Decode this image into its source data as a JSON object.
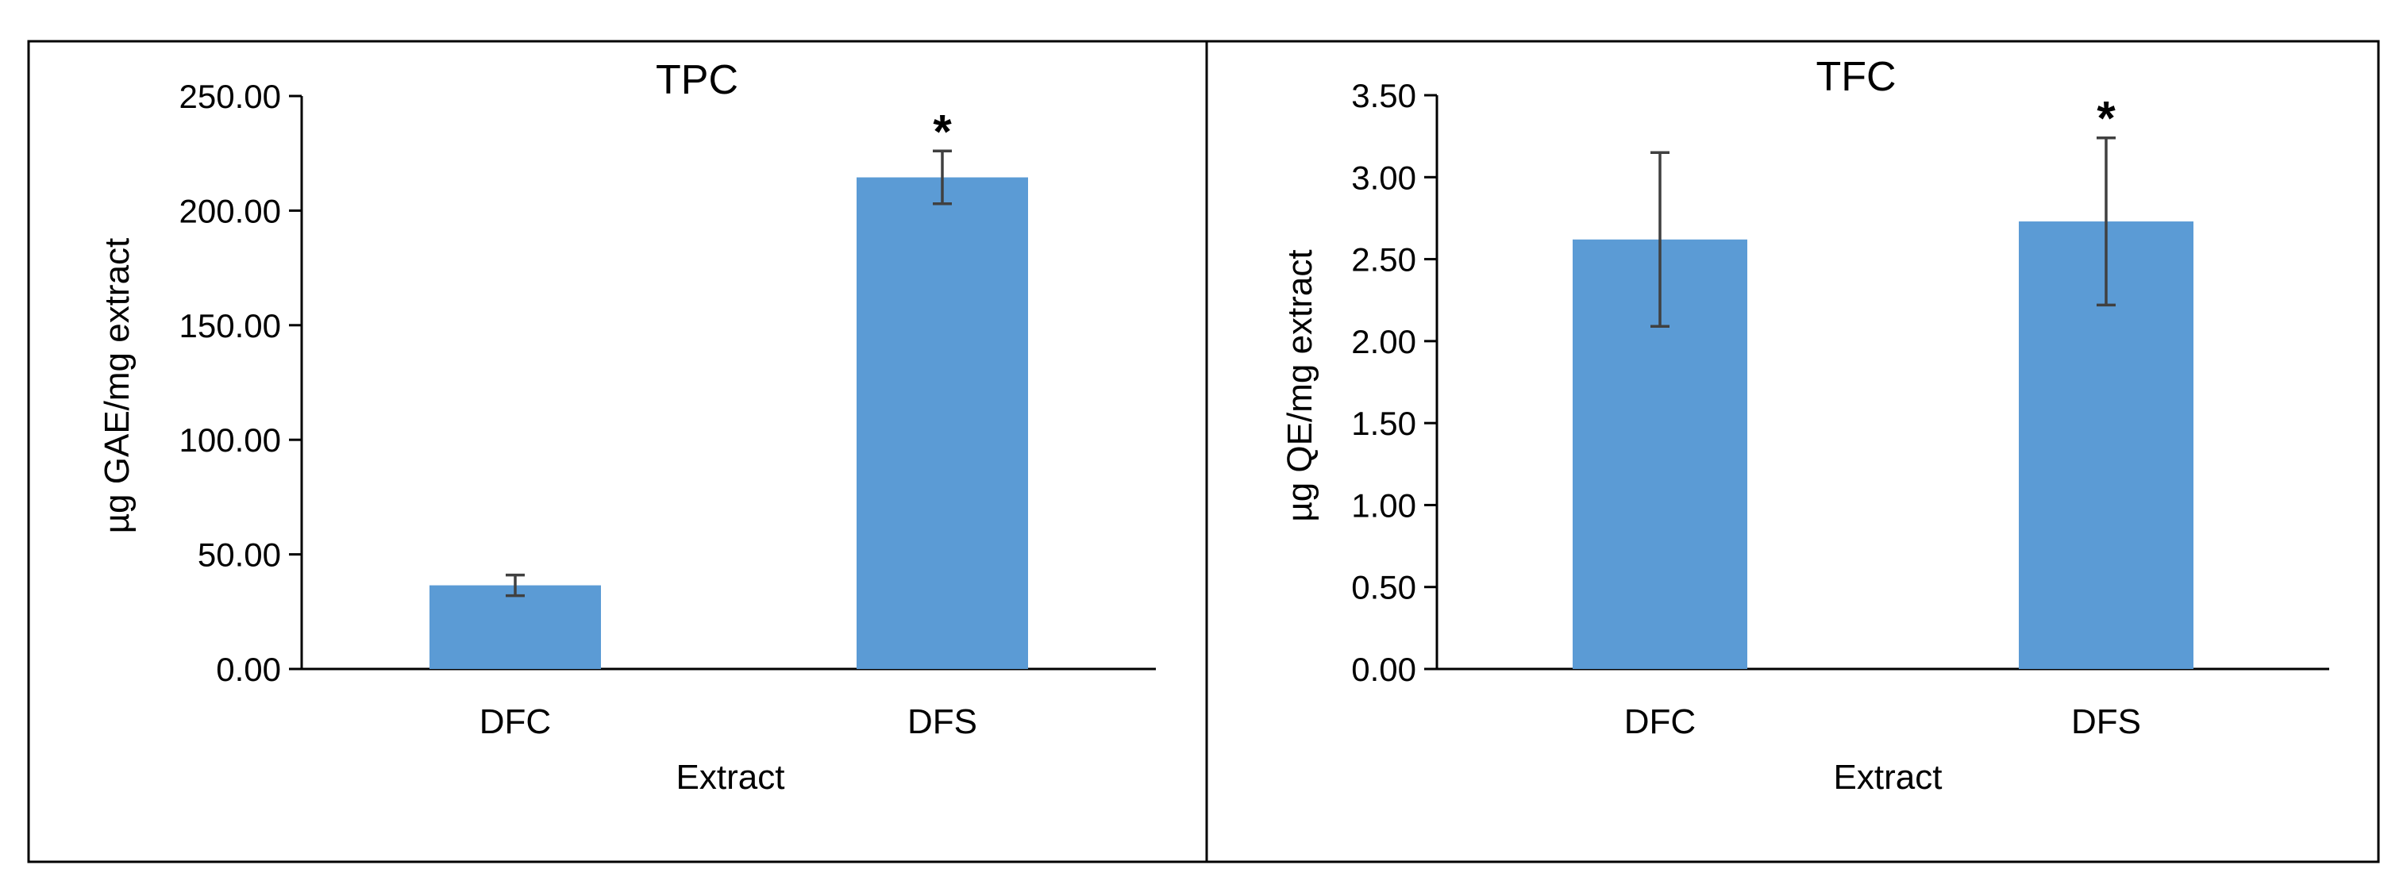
{
  "chart_data": [
    {
      "type": "bar",
      "title": "TPC",
      "xlabel": "Extract",
      "ylabel": "µg GAE/mg extract",
      "categories": [
        "DFC",
        "DFS"
      ],
      "values": [
        36.5,
        214.5
      ],
      "errors": [
        4.5,
        11.5
      ],
      "significance": [
        "",
        "*"
      ],
      "ylim": [
        0,
        250
      ],
      "yticks": [
        "0.00",
        "50.00",
        "100.00",
        "150.00",
        "200.00",
        "250.00"
      ],
      "bar_color": "#5b9bd5",
      "grid": false
    },
    {
      "type": "bar",
      "title": "TFC",
      "xlabel": "Extract",
      "ylabel": "µg QE/mg extract",
      "categories": [
        "DFC",
        "DFS"
      ],
      "values": [
        2.62,
        2.73
      ],
      "errors": [
        0.53,
        0.51
      ],
      "significance": [
        "",
        "*"
      ],
      "ylim": [
        0,
        3.5
      ],
      "yticks": [
        "0.00",
        "0.50",
        "1.00",
        "1.50",
        "2.00",
        "2.50",
        "3.00",
        "3.50"
      ],
      "bar_color": "#5b9bd5",
      "grid": false
    }
  ]
}
